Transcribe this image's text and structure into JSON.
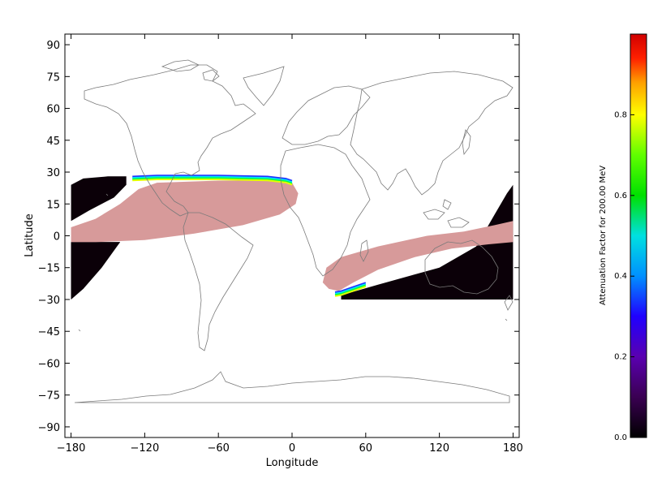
{
  "chart_data": {
    "type": "heatmap",
    "title": "",
    "xlabel": "Longitude",
    "ylabel": "Latitude",
    "xlim": [
      -185,
      185
    ],
    "ylim": [
      -95,
      95
    ],
    "xticks": [
      -180,
      -120,
      -60,
      0,
      60,
      120,
      180
    ],
    "yticks": [
      90,
      75,
      60,
      45,
      30,
      15,
      0,
      -15,
      -30,
      -45,
      -60,
      -75,
      -90
    ],
    "xtick_labels": [
      "−180",
      "−120",
      "−60",
      "0",
      "60",
      "120",
      "180"
    ],
    "ytick_labels": [
      "90",
      "75",
      "60",
      "45",
      "30",
      "15",
      "0",
      "−15",
      "−30",
      "−45",
      "−60",
      "−75",
      "−90"
    ],
    "coverage_band_lat": [
      -30,
      30
    ],
    "regions": [
      {
        "name": "western-coverage-black",
        "value": 0.0,
        "color": "#0b0008",
        "polygon": [
          [
            -180,
            24
          ],
          [
            -170,
            27
          ],
          [
            -150,
            28
          ],
          [
            -135,
            28
          ],
          [
            -135,
            24
          ],
          [
            -145,
            18
          ],
          [
            -165,
            12
          ],
          [
            -180,
            7
          ],
          [
            -180,
            -3
          ],
          [
            -165,
            -3
          ],
          [
            -140,
            -3
          ],
          [
            -150,
            -10
          ],
          [
            -165,
            -20
          ],
          [
            -180,
            -30
          ],
          [
            -180,
            -30
          ]
        ]
      },
      {
        "name": "western-lowlat-black",
        "value": 0.0,
        "color": "#0b0008",
        "polygon": [
          [
            -180,
            -3
          ],
          [
            -140,
            -3
          ],
          [
            -155,
            -15
          ],
          [
            -170,
            -25
          ],
          [
            -180,
            -30
          ]
        ]
      },
      {
        "name": "western-pink-band",
        "value": 0.95,
        "color": "#d79a9a",
        "polygon": [
          [
            -180,
            4
          ],
          [
            -160,
            8
          ],
          [
            -140,
            15
          ],
          [
            -125,
            22
          ],
          [
            -110,
            25
          ],
          [
            -60,
            26
          ],
          [
            -20,
            26
          ],
          [
            0,
            25
          ],
          [
            5,
            20
          ],
          [
            3,
            15
          ],
          [
            -10,
            10
          ],
          [
            -40,
            5
          ],
          [
            -80,
            1
          ],
          [
            -120,
            -2
          ],
          [
            -160,
            -3
          ],
          [
            -180,
            -3
          ]
        ]
      },
      {
        "name": "eastern-coverage-black",
        "value": 0.0,
        "color": "#0b0008",
        "polygon": [
          [
            40,
            -28
          ],
          [
            70,
            -23
          ],
          [
            120,
            -15
          ],
          [
            150,
            -5
          ],
          [
            165,
            10
          ],
          [
            175,
            20
          ],
          [
            180,
            24
          ],
          [
            180,
            -30
          ],
          [
            40,
            -30
          ]
        ]
      },
      {
        "name": "eastern-pink-band",
        "value": 0.95,
        "color": "#d79a9a",
        "polygon": [
          [
            25,
            -22
          ],
          [
            28,
            -15
          ],
          [
            40,
            -10
          ],
          [
            70,
            -5
          ],
          [
            110,
            0
          ],
          [
            140,
            2
          ],
          [
            165,
            5
          ],
          [
            180,
            7
          ],
          [
            180,
            -3
          ],
          [
            160,
            -4
          ],
          [
            130,
            -6
          ],
          [
            100,
            -10
          ],
          [
            70,
            -16
          ],
          [
            50,
            -22
          ],
          [
            38,
            -26
          ],
          [
            30,
            -25
          ]
        ]
      }
    ],
    "edge_gradient_arcs": [
      {
        "name": "northern-edge-gradient",
        "path": [
          [
            -130,
            27
          ],
          [
            -110,
            27.5
          ],
          [
            -60,
            27.5
          ],
          [
            -20,
            27
          ],
          [
            -5,
            26
          ],
          [
            0,
            25
          ]
        ],
        "colors": [
          "#2030ff",
          "#00e0ff",
          "#00ff40",
          "#e0ff00"
        ]
      },
      {
        "name": "southern-edge-gradient",
        "path": [
          [
            35,
            -27.5
          ],
          [
            40,
            -27
          ],
          [
            50,
            -25
          ],
          [
            60,
            -23
          ]
        ],
        "colors": [
          "#2030ff",
          "#00e0ff",
          "#00ff40",
          "#e0ff00"
        ]
      }
    ],
    "colorbar": {
      "title": "Attenuation Factor for 200.00 MeV",
      "range": [
        0.0,
        1.0
      ],
      "ticks": [
        0.0,
        0.2,
        0.4,
        0.6,
        0.8
      ],
      "tick_labels": [
        "0.0",
        "0.2",
        "0.4",
        "0.6",
        "0.8"
      ],
      "colormap": [
        [
          0.0,
          "#000000"
        ],
        [
          0.1,
          "#3a0052"
        ],
        [
          0.2,
          "#5a00b0"
        ],
        [
          0.3,
          "#2000ff"
        ],
        [
          0.4,
          "#0090ff"
        ],
        [
          0.5,
          "#00e0e0"
        ],
        [
          0.6,
          "#00e000"
        ],
        [
          0.7,
          "#60ff00"
        ],
        [
          0.8,
          "#ffff00"
        ],
        [
          0.88,
          "#ffa000"
        ],
        [
          0.94,
          "#ff2000"
        ],
        [
          1.0,
          "#d00000"
        ]
      ]
    },
    "map_background": "world coastlines outline (gray)",
    "grid": false
  }
}
